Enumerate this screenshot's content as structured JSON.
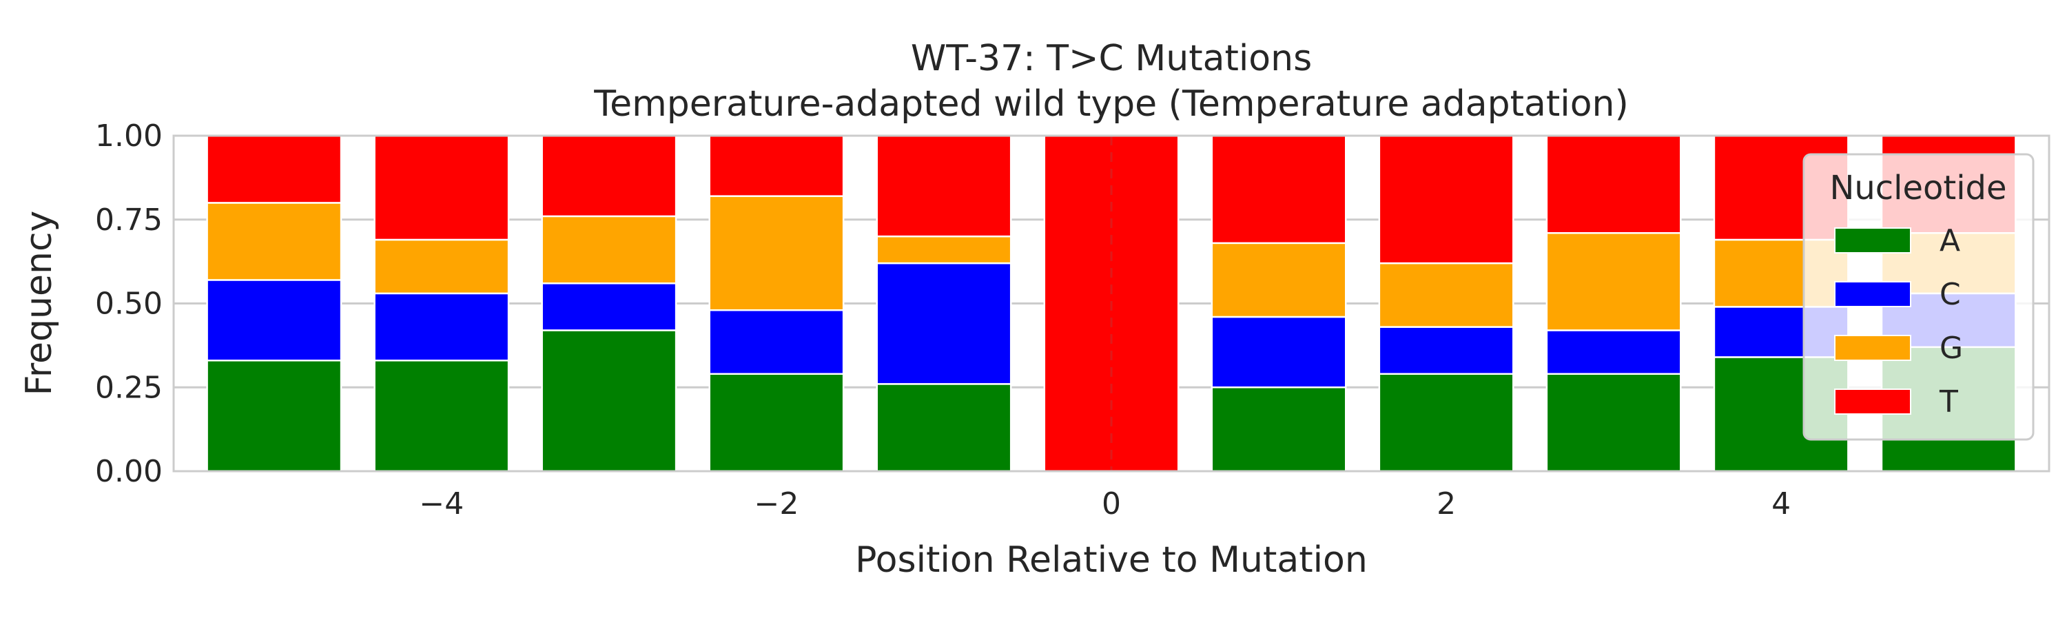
{
  "chart_data": {
    "type": "bar",
    "stacked": true,
    "title": "WT-37: T>C Mutations",
    "subtitle": "Temperature-adapted wild type (Temperature adaptation)",
    "xlabel": "Position Relative to Mutation",
    "ylabel": "Frequency",
    "x": [
      -5,
      -4,
      -3,
      -2,
      -1,
      0,
      1,
      2,
      3,
      4,
      5
    ],
    "xlim": [
      -5.6,
      5.6
    ],
    "ylim": [
      0,
      1
    ],
    "xticks": [
      "−4",
      "−2",
      "0",
      "2",
      "4"
    ],
    "xtick_values": [
      -4,
      -2,
      0,
      2,
      4
    ],
    "yticks": [
      "0.00",
      "0.25",
      "0.50",
      "0.75",
      "1.00"
    ],
    "ytick_values": [
      0,
      0.25,
      0.5,
      0.75,
      1.0
    ],
    "grid": true,
    "reference_line": {
      "x": 0,
      "style": "dashed"
    },
    "series": [
      {
        "name": "A",
        "color": "#008000",
        "values": [
          0.33,
          0.33,
          0.42,
          0.29,
          0.26,
          0.0,
          0.25,
          0.29,
          0.29,
          0.34,
          0.37
        ]
      },
      {
        "name": "C",
        "color": "#0000ff",
        "values": [
          0.24,
          0.2,
          0.14,
          0.19,
          0.36,
          0.0,
          0.21,
          0.14,
          0.13,
          0.15,
          0.16
        ]
      },
      {
        "name": "G",
        "color": "#ffa500",
        "values": [
          0.23,
          0.16,
          0.2,
          0.34,
          0.08,
          0.0,
          0.22,
          0.19,
          0.29,
          0.2,
          0.18
        ]
      },
      {
        "name": "T",
        "color": "#ff0000",
        "values": [
          0.2,
          0.31,
          0.24,
          0.18,
          0.3,
          1.0,
          0.32,
          0.38,
          0.29,
          0.31,
          0.29
        ]
      }
    ],
    "legend": {
      "title": "Nucleotide",
      "placement": "right"
    }
  }
}
